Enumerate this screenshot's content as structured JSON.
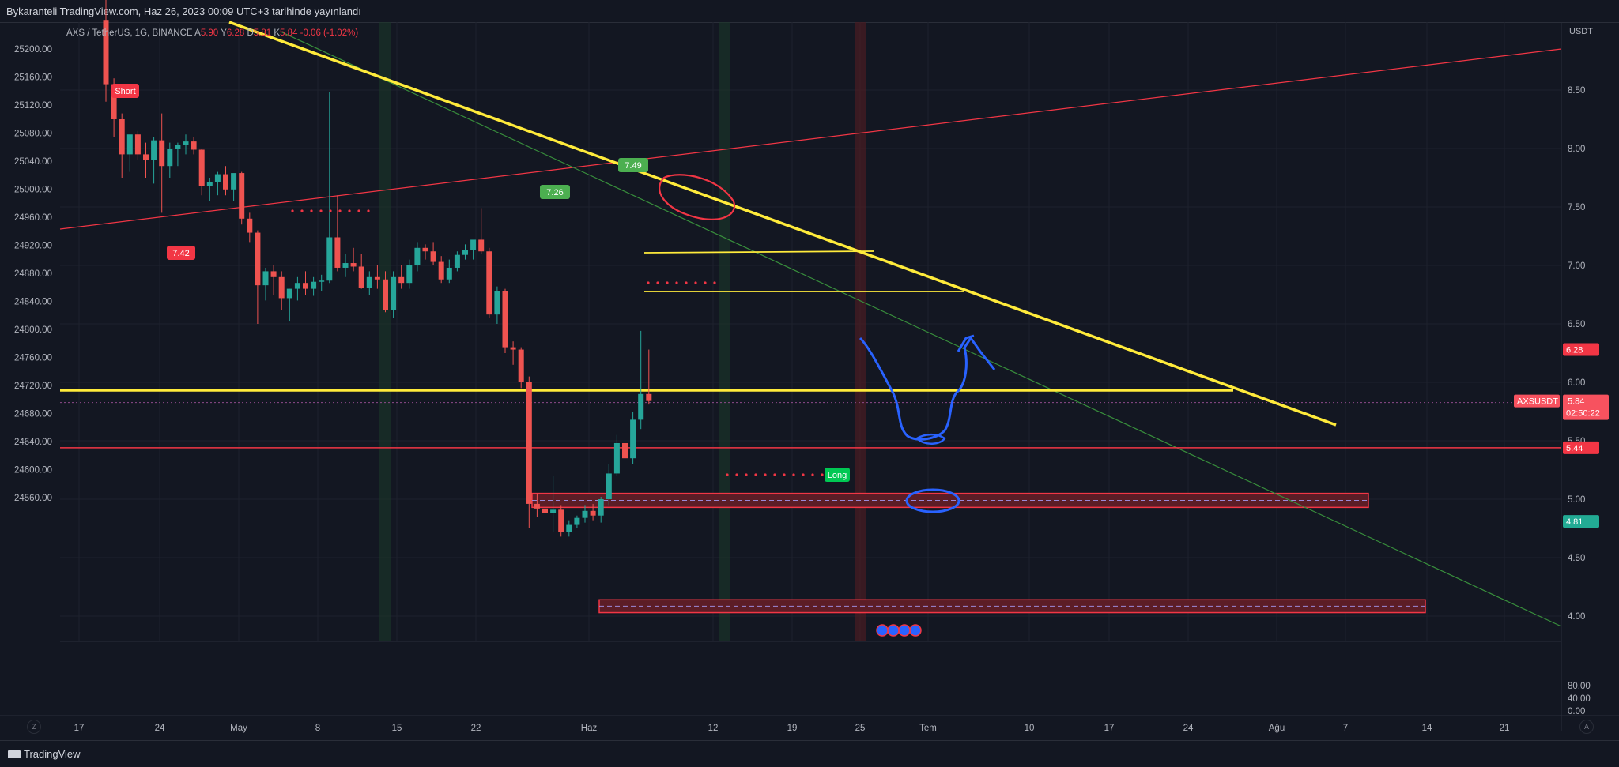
{
  "header": {
    "snapshot_title": "Bykaranteli TradingView.com, Haz 26, 2023 00:09 UTC+3 tarihinde yayınlandı"
  },
  "legend": {
    "symbol": "AXS / TetherUS, 1G, BINANCE",
    "open_label": "A",
    "open": "5.90",
    "high_label": "Y",
    "high": "6.28",
    "low_label": "D",
    "low": "5.81",
    "close_label": "K",
    "close": "5.84",
    "change": "-0.06 (-1.02%)"
  },
  "axis": {
    "currency": "USDT",
    "left_ticks": [
      "25200.00",
      "25160.00",
      "25120.00",
      "25080.00",
      "25040.00",
      "25000.00",
      "24960.00",
      "24920.00",
      "24880.00",
      "24840.00",
      "24800.00",
      "24760.00",
      "24720.00",
      "24680.00",
      "24640.00",
      "24600.00",
      "24560.00"
    ],
    "right_ticks": [
      "8.50",
      "8.00",
      "7.50",
      "7.00",
      "6.50",
      "6.00",
      "5.50",
      "5.00",
      "4.50",
      "4.00"
    ],
    "x_ticks": [
      "17",
      "24",
      "May",
      "8",
      "15",
      "22",
      "Haz",
      "12",
      "19",
      "25",
      "Tem",
      "10",
      "17",
      "24",
      "Ağu",
      "7",
      "14",
      "21"
    ],
    "indicator_ticks": [
      "80.00",
      "40.00",
      "0.00"
    ]
  },
  "price_labels": [
    {
      "text": "6.28",
      "color": "#f23645"
    },
    {
      "text": "AXSUSDT",
      "color": "#f7525f"
    },
    {
      "text": "5.84",
      "color": "#f7525f"
    },
    {
      "text": "02:50:22",
      "color": "#f7525f"
    },
    {
      "text": "5.44",
      "color": "#f23645"
    },
    {
      "text": "4.81",
      "color": "#22ab94"
    }
  ],
  "annotations": {
    "short": "Short",
    "long": "Long",
    "tag_742": "7.42",
    "tag_749": "7.49",
    "tag_726": "7.26"
  },
  "footer": {
    "brand": "TradingView",
    "corner_left": "Z",
    "corner_right": "A"
  },
  "colors": {
    "up": "#26a69a",
    "down": "#ef5350",
    "trend_yellow": "#ffeb3b",
    "red_line": "#f23645",
    "blue_drawing": "#2962ff",
    "background": "#131722"
  },
  "chart_data": {
    "type": "candlestick",
    "unit": "USDT",
    "candles": [
      {
        "o": 9.1,
        "h": 9.3,
        "l": 8.4,
        "c": 8.55
      },
      {
        "o": 8.55,
        "h": 8.6,
        "l": 8.1,
        "c": 8.25
      },
      {
        "o": 8.25,
        "h": 8.3,
        "l": 7.75,
        "c": 7.95
      },
      {
        "o": 7.95,
        "h": 8.05,
        "l": 7.8,
        "c": 8.12
      },
      {
        "o": 8.12,
        "h": 8.15,
        "l": 7.9,
        "c": 7.95
      },
      {
        "o": 7.95,
        "h": 8.05,
        "l": 7.75,
        "c": 7.9
      },
      {
        "o": 7.9,
        "h": 8.1,
        "l": 7.7,
        "c": 8.07
      },
      {
        "o": 8.07,
        "h": 8.3,
        "l": 7.45,
        "c": 7.85
      },
      {
        "o": 7.85,
        "h": 8.05,
        "l": 7.75,
        "c": 8.0
      },
      {
        "o": 8.0,
        "h": 8.05,
        "l": 7.85,
        "c": 8.03
      },
      {
        "o": 8.03,
        "h": 8.12,
        "l": 7.95,
        "c": 8.06
      },
      {
        "o": 8.06,
        "h": 8.1,
        "l": 7.95,
        "c": 7.99
      },
      {
        "o": 7.99,
        "h": 8.0,
        "l": 7.6,
        "c": 7.68
      },
      {
        "o": 7.68,
        "h": 7.75,
        "l": 7.55,
        "c": 7.71
      },
      {
        "o": 7.71,
        "h": 7.8,
        "l": 7.6,
        "c": 7.78
      },
      {
        "o": 7.78,
        "h": 7.85,
        "l": 7.6,
        "c": 7.65
      },
      {
        "o": 7.65,
        "h": 7.75,
        "l": 7.55,
        "c": 7.79
      },
      {
        "o": 7.79,
        "h": 7.8,
        "l": 7.35,
        "c": 7.4
      },
      {
        "o": 7.4,
        "h": 7.45,
        "l": 7.2,
        "c": 7.28
      },
      {
        "o": 7.28,
        "h": 7.3,
        "l": 6.5,
        "c": 6.83
      },
      {
        "o": 6.83,
        "h": 6.98,
        "l": 6.7,
        "c": 6.95
      },
      {
        "o": 6.95,
        "h": 7.0,
        "l": 6.75,
        "c": 6.9
      },
      {
        "o": 6.9,
        "h": 6.95,
        "l": 6.62,
        "c": 6.72
      },
      {
        "o": 6.72,
        "h": 6.8,
        "l": 6.52,
        "c": 6.8
      },
      {
        "o": 6.8,
        "h": 6.9,
        "l": 6.7,
        "c": 6.85
      },
      {
        "o": 6.85,
        "h": 6.95,
        "l": 6.75,
        "c": 6.8
      },
      {
        "o": 6.8,
        "h": 6.9,
        "l": 6.74,
        "c": 6.86
      },
      {
        "o": 6.86,
        "h": 6.92,
        "l": 6.78,
        "c": 6.87
      },
      {
        "o": 6.87,
        "h": 8.48,
        "l": 6.85,
        "c": 7.24
      },
      {
        "o": 7.24,
        "h": 7.6,
        "l": 6.95,
        "c": 6.98
      },
      {
        "o": 6.98,
        "h": 7.1,
        "l": 6.9,
        "c": 7.02
      },
      {
        "o": 7.02,
        "h": 7.15,
        "l": 6.95,
        "c": 6.99
      },
      {
        "o": 6.99,
        "h": 7.1,
        "l": 6.8,
        "c": 6.81
      },
      {
        "o": 6.81,
        "h": 6.95,
        "l": 6.75,
        "c": 6.9
      },
      {
        "o": 6.9,
        "h": 7.0,
        "l": 6.8,
        "c": 6.88
      },
      {
        "o": 6.88,
        "h": 6.95,
        "l": 6.6,
        "c": 6.62
      },
      {
        "o": 6.62,
        "h": 6.95,
        "l": 6.55,
        "c": 6.9
      },
      {
        "o": 6.9,
        "h": 7.0,
        "l": 6.8,
        "c": 6.85
      },
      {
        "o": 6.85,
        "h": 7.05,
        "l": 6.8,
        "c": 7.0
      },
      {
        "o": 7.0,
        "h": 7.2,
        "l": 6.95,
        "c": 7.15
      },
      {
        "o": 7.15,
        "h": 7.18,
        "l": 7.05,
        "c": 7.12
      },
      {
        "o": 7.12,
        "h": 7.2,
        "l": 7.0,
        "c": 7.03
      },
      {
        "o": 7.03,
        "h": 7.08,
        "l": 6.85,
        "c": 6.88
      },
      {
        "o": 6.88,
        "h": 7.05,
        "l": 6.85,
        "c": 6.98
      },
      {
        "o": 6.98,
        "h": 7.12,
        "l": 6.95,
        "c": 7.09
      },
      {
        "o": 7.09,
        "h": 7.18,
        "l": 7.05,
        "c": 7.13
      },
      {
        "o": 7.13,
        "h": 7.15,
        "l": 7.05,
        "c": 7.22
      },
      {
        "o": 7.22,
        "h": 7.49,
        "l": 7.1,
        "c": 7.12
      },
      {
        "o": 7.12,
        "h": 7.15,
        "l": 6.55,
        "c": 6.58
      },
      {
        "o": 6.58,
        "h": 6.82,
        "l": 6.5,
        "c": 6.78
      },
      {
        "o": 6.78,
        "h": 6.8,
        "l": 6.25,
        "c": 6.3
      },
      {
        "o": 6.3,
        "h": 6.35,
        "l": 6.15,
        "c": 6.28
      },
      {
        "o": 6.28,
        "h": 6.3,
        "l": 5.95,
        "c": 6.0
      },
      {
        "o": 6.0,
        "h": 6.05,
        "l": 4.75,
        "c": 4.96
      },
      {
        "o": 4.96,
        "h": 5.05,
        "l": 4.85,
        "c": 4.92
      },
      {
        "o": 4.92,
        "h": 4.98,
        "l": 4.75,
        "c": 4.88
      },
      {
        "o": 4.88,
        "h": 5.2,
        "l": 4.72,
        "c": 4.91
      },
      {
        "o": 4.91,
        "h": 4.95,
        "l": 4.68,
        "c": 4.72
      },
      {
        "o": 4.72,
        "h": 4.82,
        "l": 4.68,
        "c": 4.78
      },
      {
        "o": 4.78,
        "h": 4.86,
        "l": 4.75,
        "c": 4.84
      },
      {
        "o": 4.84,
        "h": 4.95,
        "l": 4.8,
        "c": 4.9
      },
      {
        "o": 4.9,
        "h": 4.96,
        "l": 4.82,
        "c": 4.86
      },
      {
        "o": 4.86,
        "h": 5.02,
        "l": 4.8,
        "c": 5.0
      },
      {
        "o": 5.0,
        "h": 5.3,
        "l": 4.95,
        "c": 5.22
      },
      {
        "o": 5.22,
        "h": 5.55,
        "l": 5.2,
        "c": 5.48
      },
      {
        "o": 5.48,
        "h": 5.5,
        "l": 5.3,
        "c": 5.35
      },
      {
        "o": 5.35,
        "h": 5.75,
        "l": 5.3,
        "c": 5.68
      },
      {
        "o": 5.68,
        "h": 6.44,
        "l": 5.6,
        "c": 5.9
      },
      {
        "o": 5.9,
        "h": 6.28,
        "l": 5.81,
        "c": 5.84
      }
    ],
    "horizontal_lines": [
      {
        "price": 5.44,
        "color": "#f23645"
      }
    ],
    "zones": [
      {
        "low": 4.93,
        "high": 5.05
      },
      {
        "low": 4.03,
        "high": 4.14
      }
    ],
    "y_range_right": [
      3.8,
      9.2
    ],
    "y_range_left": [
      24550,
      25230
    ],
    "indicator_range": [
      0,
      100
    ],
    "legend_position": "top-left"
  }
}
